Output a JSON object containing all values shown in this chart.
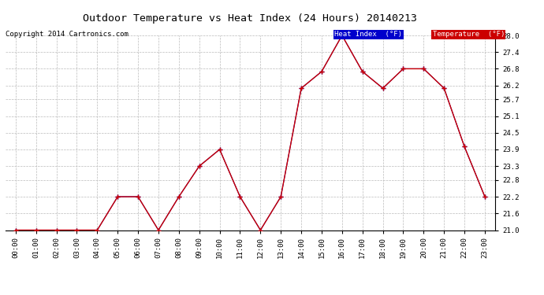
{
  "title": "Outdoor Temperature vs Heat Index (24 Hours) 20140213",
  "copyright": "Copyright 2014 Cartronics.com",
  "hours": [
    "00:00",
    "01:00",
    "02:00",
    "03:00",
    "04:00",
    "05:00",
    "06:00",
    "07:00",
    "08:00",
    "09:00",
    "10:00",
    "11:00",
    "12:00",
    "13:00",
    "14:00",
    "15:00",
    "16:00",
    "17:00",
    "18:00",
    "19:00",
    "20:00",
    "21:00",
    "22:00",
    "23:00"
  ],
  "temperature": [
    21.0,
    21.0,
    21.0,
    21.0,
    21.0,
    22.2,
    22.2,
    21.0,
    22.2,
    23.3,
    23.9,
    22.2,
    21.0,
    22.2,
    26.1,
    26.7,
    28.0,
    26.7,
    26.1,
    26.8,
    26.8,
    26.1,
    24.0,
    22.2
  ],
  "heat_index": [
    21.0,
    21.0,
    21.0,
    21.0,
    21.0,
    22.2,
    22.2,
    21.0,
    22.2,
    23.3,
    23.9,
    22.2,
    21.0,
    22.2,
    26.1,
    26.7,
    28.0,
    26.7,
    26.1,
    26.8,
    26.8,
    26.1,
    24.0,
    22.2
  ],
  "temp_color": "#cc0000",
  "heat_index_color": "#0000cc",
  "background_color": "#ffffff",
  "plot_bg_color": "#ffffff",
  "grid_color": "#bbbbbb",
  "ylim_min": 21.0,
  "ylim_max": 28.0,
  "yticks": [
    21.0,
    21.6,
    22.2,
    22.8,
    23.3,
    23.9,
    24.5,
    25.1,
    25.7,
    26.2,
    26.8,
    27.4,
    28.0
  ],
  "legend_heat_index_bg": "#0000cc",
  "legend_temp_bg": "#cc0000",
  "legend_heat_index_text": "Heat Index  (°F)",
  "legend_temp_text": "Temperature  (°F)"
}
